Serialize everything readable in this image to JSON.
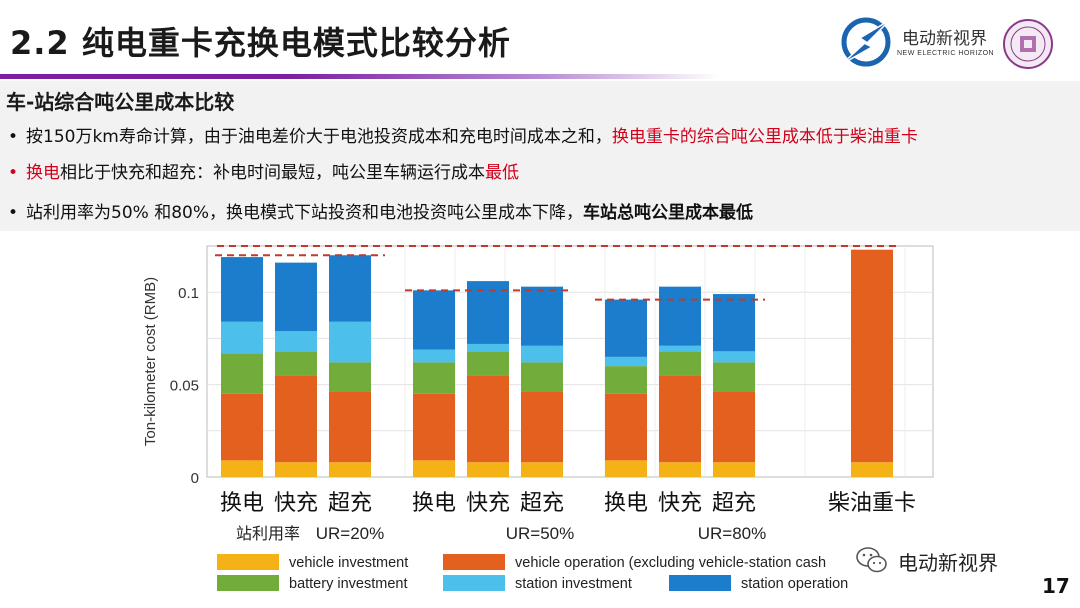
{
  "header": {
    "title": "2.2 纯电重卡充换电模式比较分析",
    "logo_cn": "电动新视界",
    "logo_en": "NEW ELECTRIC HORIZON"
  },
  "section": {
    "subtitle": "车-站综合吨公里成本比较",
    "bullets": [
      {
        "pre": "按150万km寿命计算，由于油电差价大于电池投资成本和充电时间成本之和，",
        "hl": "换电重卡的综合吨公里成本低于柴油重卡"
      },
      {
        "hl1": "换电",
        "mid": "相比于快充和超充：补电时间最短，吨公里车辆运行成本",
        "hl2": "最低"
      },
      {
        "pre": "站利用率为50% 和80%，换电模式下站投资和电池投资吨公里成本下降，",
        "bold": "车站总吨公里成本最低"
      }
    ]
  },
  "chart_data": {
    "type": "bar",
    "stacked": true,
    "ylabel": "Ton-kilometer cost (RMB)",
    "ylim": [
      0,
      0.125
    ],
    "yticks": [
      "0",
      "0.05",
      "0.1"
    ],
    "grid": true,
    "categories": [
      "换电",
      "快充",
      "超充",
      "换电",
      "快充",
      "超充",
      "换电",
      "快充",
      "超充",
      "柴油重卡"
    ],
    "groups": [
      {
        "label": "UR=20%",
        "prefix": "站利用率"
      },
      {
        "label": "UR=50%"
      },
      {
        "label": "UR=80%"
      }
    ],
    "series": [
      {
        "name": "vehicle investment",
        "color": "#f5b217",
        "values": [
          0.009,
          0.008,
          0.008,
          0.009,
          0.008,
          0.008,
          0.009,
          0.008,
          0.008,
          0.008
        ]
      },
      {
        "name": "vehicle operation (excluding vehicle-station cash",
        "color": "#e4601f",
        "values": [
          0.036,
          0.047,
          0.038,
          0.036,
          0.047,
          0.038,
          0.036,
          0.047,
          0.038,
          0.115
        ]
      },
      {
        "name": "battery investment",
        "color": "#72ad3c",
        "values": [
          0.022,
          0.013,
          0.016,
          0.017,
          0.013,
          0.016,
          0.015,
          0.013,
          0.016,
          0
        ]
      },
      {
        "name": "station investment",
        "color": "#4cbfea",
        "values": [
          0.017,
          0.011,
          0.022,
          0.007,
          0.004,
          0.009,
          0.005,
          0.003,
          0.006,
          0
        ]
      },
      {
        "name": "station operation",
        "color": "#1b7dcc",
        "values": [
          0.035,
          0.037,
          0.036,
          0.032,
          0.034,
          0.032,
          0.031,
          0.032,
          0.031,
          0
        ]
      }
    ],
    "reference_lines": [
      0.125,
      0.12,
      0.101,
      0.096
    ]
  },
  "footer": {
    "wechat_label": "电动新视界",
    "page_number": "17"
  }
}
